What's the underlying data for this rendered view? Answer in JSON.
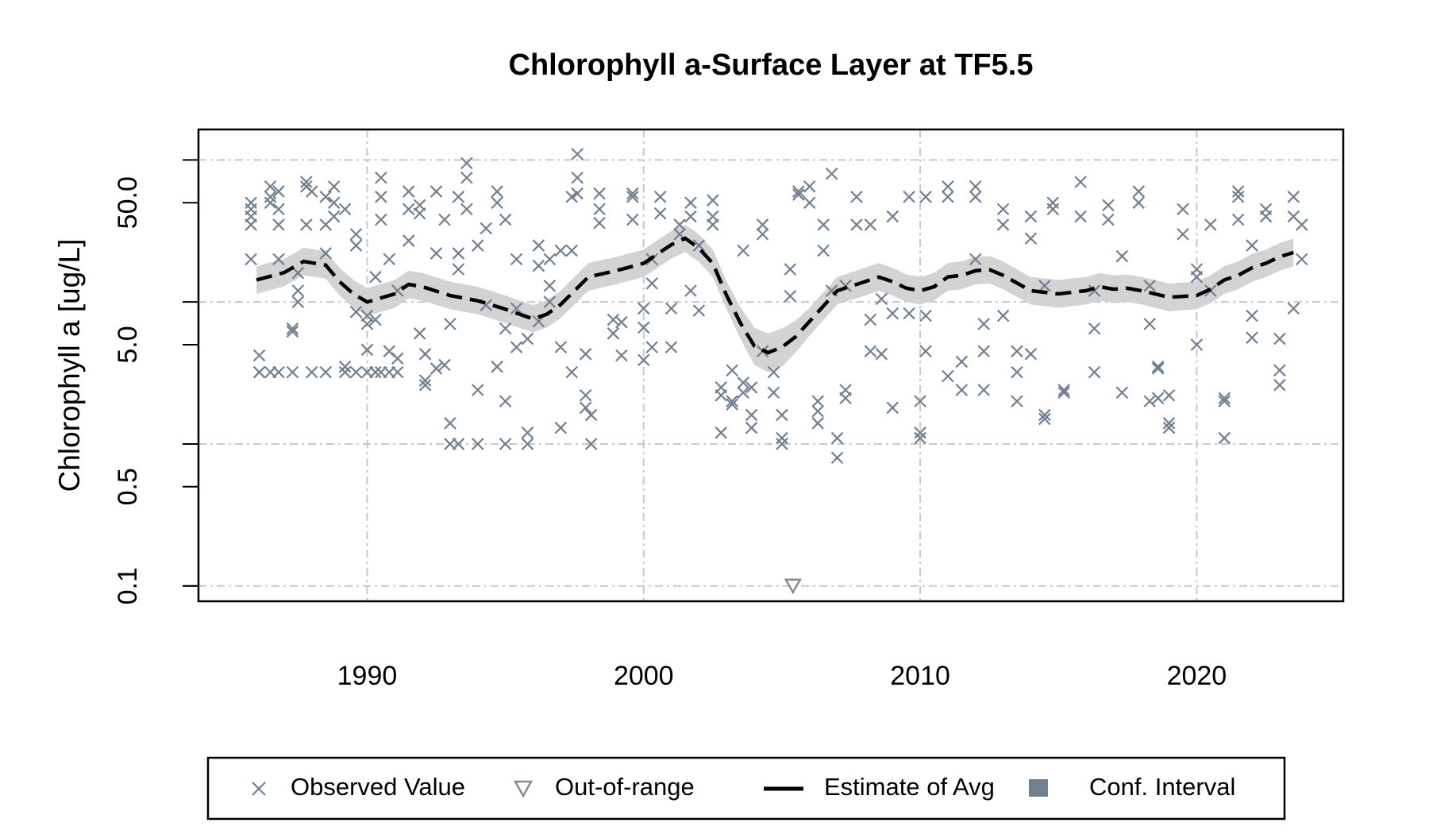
{
  "chart_data": {
    "type": "scatter",
    "title": "Chlorophyll a-Surface Layer at TF5.5",
    "y_label": "Chlorophyll a [ug/L]",
    "log_y": true,
    "grid": true,
    "legend_position": "bottom",
    "xlim": [
      1983.9,
      2025.3
    ],
    "xticks": [
      1990,
      2000,
      2010,
      2020
    ],
    "ylim": [
      0.078,
      164
    ],
    "yticks": [
      0.1,
      0.5,
      {
        "value": 5,
        "label": "5.0"
      },
      {
        "value": 50,
        "label": "50.0"
      }
    ],
    "ygrid": [
      0.1,
      1,
      10,
      100
    ],
    "series": [
      {
        "name": "Observed Value",
        "marker": "x",
        "color": "#708090",
        "x": [
          1985.8,
          1985.8,
          1985.8,
          1985.8,
          1985.8,
          1986.1,
          1986.1,
          1986.1,
          1986.5,
          1986.5,
          1986.5,
          1986.5,
          1986.8,
          1986.8,
          1986.8,
          1986.8,
          1986.8,
          1987.3,
          1987.3,
          1987.3,
          1987.5,
          1987.5,
          1987.5,
          1987.8,
          1987.8,
          1987.8,
          1988,
          1988,
          1988.5,
          1988.5,
          1988.5,
          1988.5,
          1988.8,
          1988.8,
          1988.8,
          1989.2,
          1989.2,
          1989.2,
          1989.6,
          1989.6,
          1989.6,
          1989.6,
          1990,
          1990,
          1990,
          1990,
          1990.3,
          1990.3,
          1990.3,
          1990.5,
          1990.5,
          1990.5,
          1990.5,
          1990.8,
          1990.8,
          1990.8,
          1991.1,
          1991.1,
          1991.1,
          1991.5,
          1991.5,
          1991.5,
          1991.9,
          1991.9,
          1991.9,
          1992.1,
          1992.1,
          1992.1,
          1992.5,
          1992.5,
          1992.5,
          1992.8,
          1992.8,
          1993,
          1993,
          1993,
          1993.3,
          1993.3,
          1993.3,
          1993.3,
          1993.6,
          1993.6,
          1993.6,
          1994,
          1994,
          1994,
          1994.3,
          1994.3,
          1994.7,
          1994.7,
          1994.7,
          1995,
          1995,
          1995,
          1995,
          1995.4,
          1995.4,
          1995.4,
          1995.8,
          1995.8,
          1995.8,
          1996.2,
          1996.2,
          1996.2,
          1996.6,
          1996.6,
          1996.6,
          1997,
          1997,
          1997,
          1997.4,
          1997.4,
          1997.4,
          1997.6,
          1997.6,
          1997.6,
          1997.9,
          1997.9,
          1997.9,
          1998.1,
          1998.1,
          1998.4,
          1998.4,
          1998.4,
          1998.9,
          1998.9,
          1999.2,
          1999.2,
          1999.6,
          1999.6,
          1999.6,
          2000,
          2000,
          2000,
          2000.3,
          2000.3,
          2000.3,
          2000.6,
          2000.6,
          2001,
          2001,
          2001.3,
          2001.3,
          2001.7,
          2001.7,
          2001.7,
          2002,
          2002,
          2002.5,
          2002.5,
          2002.5,
          2002.8,
          2002.8,
          2002.8,
          2003.2,
          2003.2,
          2003.2,
          2003.6,
          2003.6,
          2003.6,
          2003.9,
          2003.9,
          2003.9,
          2004.3,
          2004.3,
          2004.3,
          2004.7,
          2004.7,
          2005,
          2005,
          2005,
          2005.3,
          2005.3,
          2005.6,
          2005.6,
          2006,
          2006,
          2006.3,
          2006.3,
          2006.3,
          2006.5,
          2006.5,
          2006.8,
          2006.8,
          2007,
          2007,
          2007.3,
          2007.3,
          2007.3,
          2007.7,
          2007.7,
          2008.2,
          2008.2,
          2008.2,
          2008.6,
          2008.6,
          2009,
          2009,
          2009,
          2009.6,
          2009.6,
          2010,
          2010,
          2010,
          2010.2,
          2010.2,
          2010.2,
          2011,
          2011,
          2011,
          2011.5,
          2011.5,
          2012,
          2012,
          2012,
          2012.3,
          2012.3,
          2012.3,
          2013,
          2013,
          2013,
          2013.5,
          2013.5,
          2013.5,
          2014,
          2014,
          2014,
          2014.5,
          2014.5,
          2014.5,
          2014.8,
          2014.8,
          2015.2,
          2015.2,
          2015.8,
          2015.8,
          2016.3,
          2016.3,
          2016.3,
          2016.8,
          2016.8,
          2017.3,
          2017.3,
          2017.9,
          2017.9,
          2018.3,
          2018.3,
          2018.3,
          2018.6,
          2018.6,
          2018.6,
          2019,
          2019,
          2019,
          2019.5,
          2019.5,
          2020,
          2020,
          2020,
          2020.5,
          2020.5,
          2021,
          2021,
          2021,
          2021.5,
          2021.5,
          2021.5,
          2022,
          2022,
          2022,
          2022.5,
          2022.5,
          2023,
          2023,
          2023,
          2023.5,
          2023.5,
          2023.5,
          2023.8,
          2023.8
        ],
        "values": [
          45,
          40,
          35,
          50,
          20,
          3.2,
          4.2,
          3.2,
          55,
          65,
          50,
          3.2,
          60,
          45,
          35,
          20,
          3.2,
          6.2,
          6.5,
          3.2,
          12,
          10,
          16,
          35,
          65,
          70,
          3.2,
          60,
          3.2,
          35,
          55,
          22,
          65,
          50,
          40,
          3.5,
          3.2,
          45,
          3.2,
          30,
          25,
          8.5,
          3.2,
          7,
          8,
          4.6,
          3.2,
          7.5,
          15,
          75,
          55,
          38,
          3.2,
          4.5,
          3.2,
          20,
          3.2,
          4,
          12,
          60,
          45,
          27,
          48,
          42,
          6,
          2.6,
          2.8,
          4.3,
          60,
          22,
          3.4,
          3.6,
          38,
          1.4,
          1,
          7,
          55,
          17,
          22,
          1,
          95,
          75,
          45,
          1,
          2.4,
          25,
          33,
          9.5,
          60,
          50,
          3.5,
          38,
          1,
          6.5,
          2,
          4.8,
          20,
          9,
          1.2,
          1,
          5.5,
          18,
          7.3,
          25,
          13,
          20,
          10,
          23,
          4.8,
          1.3,
          55,
          23,
          3.2,
          110,
          75,
          58,
          2.2,
          1.8,
          4.3,
          1,
          1.6,
          58,
          45,
          36,
          7.5,
          6,
          4.2,
          7.2,
          58,
          55,
          38,
          9,
          6.6,
          3.9,
          4.8,
          20,
          13.5,
          55,
          42,
          9,
          4.8,
          30,
          35,
          50,
          40,
          12,
          8.7,
          25,
          52,
          40,
          35,
          2.5,
          1.2,
          2.2,
          2,
          1.9,
          3.3,
          23,
          2.7,
          2.3,
          1.3,
          1.6,
          2.5,
          30,
          35,
          4.5,
          2.3,
          3.2,
          1,
          1.1,
          1.6,
          17,
          11,
          57,
          60,
          65,
          50,
          2,
          1.7,
          1.4,
          23,
          35,
          80,
          12,
          1.1,
          0.8,
          2.1,
          2.4,
          13,
          55,
          35,
          4.5,
          7.5,
          35,
          4.3,
          10.5,
          40,
          1.8,
          8.3,
          55,
          8.3,
          1.2,
          1.1,
          2,
          4.5,
          8,
          55,
          55,
          65,
          3,
          2.4,
          3.8,
          65,
          55,
          20,
          4.5,
          7,
          2.4,
          45,
          35,
          8,
          4.5,
          2,
          3.2,
          40,
          28,
          4.3,
          1.6,
          1.5,
          13,
          50,
          45,
          2.4,
          2.3,
          70,
          40,
          3.2,
          6.5,
          12,
          48,
          38,
          21,
          2.3,
          60,
          50,
          7,
          2,
          13,
          3.4,
          2.1,
          3.5,
          1.3,
          1.4,
          2.2,
          45,
          30,
          5,
          17,
          15,
          35,
          12,
          1.1,
          2.1,
          2,
          55,
          60,
          38,
          5.6,
          8,
          25,
          45,
          40,
          5.5,
          3.3,
          2.6,
          40,
          55,
          9,
          20,
          35
        ]
      },
      {
        "name": "Out-of-range",
        "marker": "triangle",
        "color": "#8c8c8c",
        "x": [
          2005.4
        ],
        "values": [
          0.1
        ]
      },
      {
        "name": "Estimate of Avg",
        "marker": "dashed-line",
        "color": "#000000",
        "x": [
          1986,
          1987,
          1987.7,
          1988.5,
          1989,
          1989.5,
          1990,
          1991,
          1991.5,
          1992,
          1993,
          1994,
          1995,
          1996,
          1996.5,
          1997,
          1998,
          1999,
          2000,
          2000.5,
          2001,
          2001.5,
          2002,
          2002.5,
          2003,
          2003.5,
          2004,
          2004.5,
          2005,
          2005.5,
          2006,
          2007,
          2008,
          2008.5,
          2009,
          2009.5,
          2010,
          2010.5,
          2011,
          2011.5,
          2012,
          2012.5,
          2013,
          2014,
          2015,
          2016,
          2016.5,
          2017,
          2017.5,
          2018,
          2019,
          2020,
          2020.5,
          2021,
          2021.5,
          2022,
          2022.5,
          2023,
          2023.5
        ],
        "values": [
          14.3,
          16.1,
          19.3,
          18.2,
          13.9,
          11.4,
          10.0,
          11.4,
          13.3,
          12.8,
          11.1,
          10.2,
          8.9,
          7.6,
          8.2,
          9.6,
          15.0,
          16.6,
          18.7,
          21.8,
          25.3,
          28.1,
          23.9,
          18.7,
          11.1,
          7.1,
          4.9,
          4.4,
          4.8,
          5.7,
          7.3,
          12.0,
          13.9,
          15.0,
          13.9,
          12.5,
          12.0,
          12.8,
          15.0,
          15.4,
          16.6,
          16.9,
          15.4,
          12.0,
          11.4,
          12.0,
          12.8,
          12.3,
          12.5,
          12.0,
          10.8,
          11.1,
          12.3,
          14.3,
          15.4,
          17.4,
          18.7,
          20.8,
          22.3
        ]
      },
      {
        "name": "Conf. Interval",
        "marker": "band",
        "color": "#d3d3d3",
        "legend_color": "#708090",
        "x": [
          1986,
          1987,
          1987.7,
          1988.5,
          1989,
          1989.5,
          1990,
          1991,
          1991.5,
          1992,
          1993,
          1994,
          1995,
          1996,
          1996.5,
          1997,
          1998,
          1999,
          2000,
          2000.5,
          2001,
          2001.5,
          2002,
          2002.5,
          2003,
          2003.5,
          2004,
          2004.5,
          2005,
          2005.5,
          2006,
          2007,
          2008,
          2008.5,
          2009,
          2009.5,
          2010,
          2010.5,
          2011,
          2011.5,
          2012,
          2012.5,
          2013,
          2014,
          2015,
          2016,
          2016.5,
          2017,
          2017.5,
          2018,
          2019,
          2020,
          2020.5,
          2021,
          2021.5,
          2022,
          2022.5,
          2023,
          2023.5
        ],
        "lower": [
          11.4,
          12.9,
          15.4,
          14.6,
          11.1,
          9.1,
          8.0,
          9.1,
          10.6,
          10.2,
          8.9,
          8.2,
          7.1,
          6.1,
          6.6,
          7.7,
          12.0,
          13.3,
          15.0,
          17.4,
          20.2,
          22.5,
          19.1,
          15.0,
          8.9,
          5.5,
          3.6,
          3.2,
          3.5,
          4.4,
          5.8,
          9.6,
          11.1,
          12.0,
          11.1,
          10.0,
          9.6,
          10.2,
          12.0,
          12.3,
          13.3,
          13.5,
          12.3,
          9.6,
          9.1,
          9.6,
          10.2,
          9.8,
          10.0,
          9.6,
          8.6,
          8.9,
          9.8,
          11.4,
          12.3,
          13.9,
          15.0,
          16.6,
          17.8
        ],
        "upper": [
          17.9,
          20.1,
          24.1,
          22.8,
          17.4,
          14.3,
          12.5,
          14.3,
          16.6,
          16.0,
          13.9,
          12.8,
          11.1,
          9.5,
          10.3,
          12.0,
          18.8,
          20.8,
          23.4,
          27.3,
          31.6,
          35.1,
          29.9,
          23.4,
          13.9,
          9.2,
          6.6,
          6.0,
          6.5,
          7.4,
          9.1,
          15.0,
          17.4,
          18.8,
          17.4,
          15.6,
          15.0,
          16.0,
          18.8,
          19.3,
          20.8,
          21.1,
          19.3,
          15.0,
          14.3,
          15.0,
          16.0,
          15.4,
          15.6,
          15.0,
          13.5,
          13.9,
          15.4,
          17.9,
          19.3,
          21.8,
          23.4,
          26.0,
          27.9
        ]
      }
    ]
  }
}
